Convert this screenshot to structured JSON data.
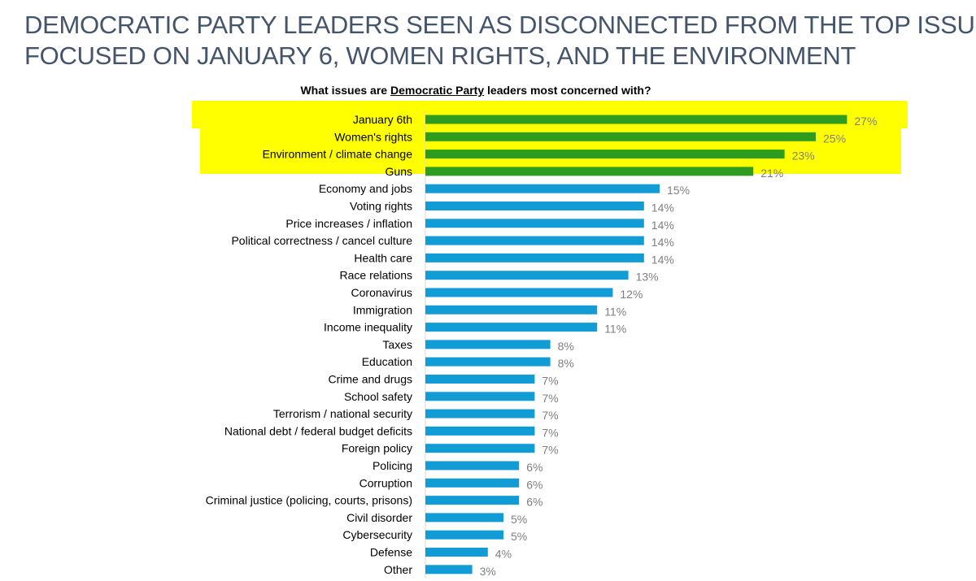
{
  "headline": {
    "line1": "DEMOCRATIC PARTY LEADERS SEEN AS DISCONNECTED FROM THE TOP ISSUES;",
    "line2": "FOCUSED ON JANUARY 6, WOMEN RIGHTS, AND THE ENVIRONMENT"
  },
  "colors": {
    "highlight": "#ffff00",
    "top_bar": "#2e9c1e",
    "other_bar": "#119cd6",
    "headline_text": "#44546a"
  },
  "chart_data": {
    "type": "bar",
    "orientation": "horizontal",
    "title_pre": "What issues are ",
    "title_underlined": "Democratic Party",
    "title_post": " leaders most concerned with?",
    "value_suffix": "%",
    "highlighted_count": 4,
    "categories": [
      "January 6th",
      "Women's rights",
      "Environment / climate change",
      "Guns",
      "Economy and jobs",
      "Voting rights",
      "Price increases / inflation",
      "Political correctness / cancel culture",
      "Health care",
      "Race relations",
      "Coronavirus",
      "Immigration",
      "Income inequality",
      "Taxes",
      "Education",
      "Crime and drugs",
      "School safety",
      "Terrorism / national security",
      "National debt / federal budget deficits",
      "Foreign policy",
      "Policing",
      "Corruption",
      "Criminal justice (policing, courts, prisons)",
      "Civil disorder",
      "Cybersecurity",
      "Defense",
      "Other"
    ],
    "values": [
      27,
      25,
      23,
      21,
      15,
      14,
      14,
      14,
      14,
      13,
      12,
      11,
      11,
      8,
      8,
      7,
      7,
      7,
      7,
      7,
      6,
      6,
      6,
      5,
      5,
      4,
      3
    ],
    "labels": [
      "27%",
      "25%",
      "23%",
      "21%",
      "15%",
      "14%",
      "14%",
      "14%",
      "14%",
      "13%",
      "12%",
      "11%",
      "11%",
      "8%",
      "8%",
      "7%",
      "7%",
      "7%",
      "7%",
      "7%",
      "6%",
      "6%",
      "6%",
      "5%",
      "5%",
      "4%",
      "3%"
    ],
    "xlim": [
      0,
      30
    ],
    "grid": false,
    "legend": "none"
  }
}
